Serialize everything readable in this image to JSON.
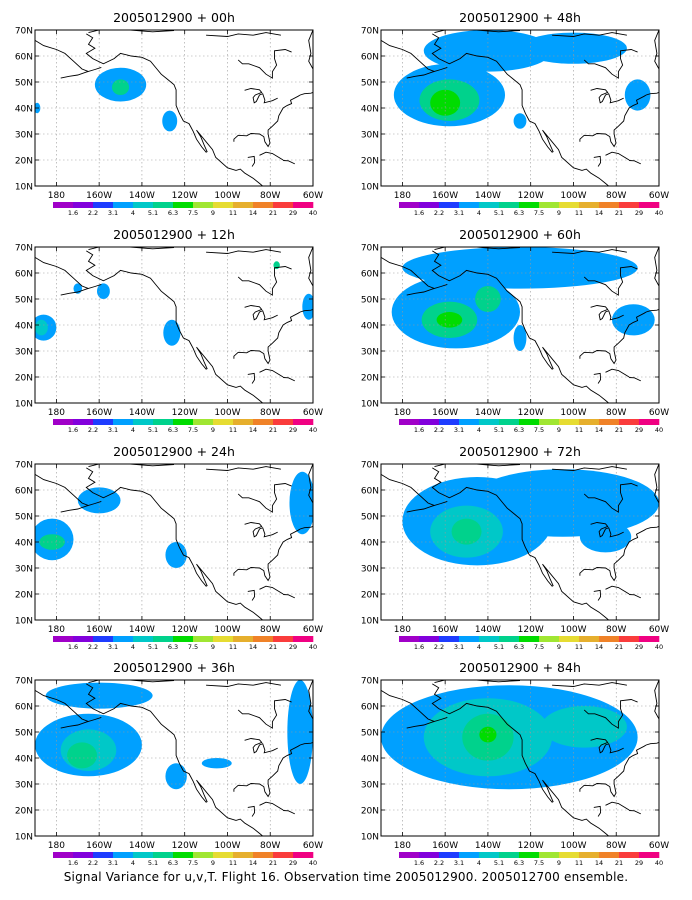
{
  "figure": {
    "caption": "Signal Variance for u,v,T. Flight 16. Observation time 2005012900. 2005012700 ensemble.",
    "panels": [
      {
        "title": "2005012900 + 00h",
        "blobs": [
          {
            "lon": 150,
            "lat": 49,
            "rlon": 12,
            "rlat": 6.5,
            "level": 3
          },
          {
            "lon": 150,
            "lat": 48,
            "rlon": 4,
            "rlat": 3,
            "level": 5
          },
          {
            "lon": 127,
            "lat": 35,
            "rlon": 3.5,
            "rlat": 4,
            "level": 3
          },
          {
            "lon": 189,
            "lat": 40,
            "rlon": 1.5,
            "rlat": 2,
            "level": 3
          }
        ]
      },
      {
        "title": "2005012900 + 48h",
        "blobs": [
          {
            "lon": 158,
            "lat": 45,
            "rlon": 26,
            "rlat": 12,
            "level": 3
          },
          {
            "lon": 140,
            "lat": 62,
            "rlon": 30,
            "rlat": 8,
            "level": 3
          },
          {
            "lon": 100,
            "lat": 63,
            "rlon": 25,
            "rlat": 6,
            "level": 3
          },
          {
            "lon": 158,
            "lat": 43,
            "rlon": 14,
            "rlat": 8,
            "level": 5
          },
          {
            "lon": 160,
            "lat": 42,
            "rlon": 7,
            "rlat": 5,
            "level": 6
          },
          {
            "lon": 125,
            "lat": 35,
            "rlon": 3,
            "rlat": 3,
            "level": 3
          },
          {
            "lon": 70,
            "lat": 45,
            "rlon": 6,
            "rlat": 6,
            "level": 3
          }
        ]
      },
      {
        "title": "2005012900 + 12h",
        "blobs": [
          {
            "lon": 186,
            "lat": 39,
            "rlon": 6,
            "rlat": 5,
            "level": 3
          },
          {
            "lon": 187,
            "lat": 39,
            "rlon": 3,
            "rlat": 3,
            "level": 4
          },
          {
            "lon": 158,
            "lat": 53,
            "rlon": 3,
            "rlat": 3,
            "level": 3
          },
          {
            "lon": 170,
            "lat": 54,
            "rlon": 2,
            "rlat": 2,
            "level": 3
          },
          {
            "lon": 126,
            "lat": 37,
            "rlon": 4,
            "rlat": 5,
            "level": 3
          },
          {
            "lon": 62,
            "lat": 47,
            "rlon": 3,
            "rlat": 5,
            "level": 3
          },
          {
            "lon": 77,
            "lat": 63,
            "rlon": 1.5,
            "rlat": 1.5,
            "level": 5
          }
        ]
      },
      {
        "title": "2005012900 + 60h",
        "blobs": [
          {
            "lon": 155,
            "lat": 45,
            "rlon": 30,
            "rlat": 14,
            "level": 3
          },
          {
            "lon": 125,
            "lat": 62,
            "rlon": 55,
            "rlat": 8,
            "level": 3
          },
          {
            "lon": 158,
            "lat": 42,
            "rlon": 13,
            "rlat": 7,
            "level": 5
          },
          {
            "lon": 140,
            "lat": 50,
            "rlon": 6,
            "rlat": 5,
            "level": 5
          },
          {
            "lon": 158,
            "lat": 42,
            "rlon": 6,
            "rlat": 3,
            "level": 6
          },
          {
            "lon": 125,
            "lat": 35,
            "rlon": 3,
            "rlat": 5,
            "level": 3
          },
          {
            "lon": 72,
            "lat": 42,
            "rlon": 10,
            "rlat": 6,
            "level": 3
          }
        ]
      },
      {
        "title": "2005012900 + 24h",
        "blobs": [
          {
            "lon": 182,
            "lat": 41,
            "rlon": 10,
            "rlat": 8,
            "level": 3
          },
          {
            "lon": 182,
            "lat": 40,
            "rlon": 6,
            "rlat": 3,
            "level": 5
          },
          {
            "lon": 160,
            "lat": 56,
            "rlon": 10,
            "rlat": 5,
            "level": 3
          },
          {
            "lon": 124,
            "lat": 35,
            "rlon": 5,
            "rlat": 5,
            "level": 3
          },
          {
            "lon": 65,
            "lat": 55,
            "rlon": 6,
            "rlat": 12,
            "level": 3
          }
        ]
      },
      {
        "title": "2005012900 + 72h",
        "blobs": [
          {
            "lon": 145,
            "lat": 48,
            "rlon": 35,
            "rlat": 17,
            "level": 3
          },
          {
            "lon": 105,
            "lat": 55,
            "rlon": 45,
            "rlat": 13,
            "level": 3
          },
          {
            "lon": 150,
            "lat": 44,
            "rlon": 17,
            "rlat": 10,
            "level": 4
          },
          {
            "lon": 150,
            "lat": 44,
            "rlon": 7,
            "rlat": 5,
            "level": 5
          },
          {
            "lon": 85,
            "lat": 42,
            "rlon": 12,
            "rlat": 6,
            "level": 3
          }
        ]
      },
      {
        "title": "2005012900 + 36h",
        "blobs": [
          {
            "lon": 165,
            "lat": 45,
            "rlon": 25,
            "rlat": 12,
            "level": 3
          },
          {
            "lon": 165,
            "lat": 43,
            "rlon": 13,
            "rlat": 8,
            "level": 4
          },
          {
            "lon": 168,
            "lat": 41,
            "rlon": 7,
            "rlat": 5,
            "level": 5
          },
          {
            "lon": 160,
            "lat": 64,
            "rlon": 25,
            "rlat": 5,
            "level": 3
          },
          {
            "lon": 124,
            "lat": 33,
            "rlon": 5,
            "rlat": 5,
            "level": 3
          },
          {
            "lon": 105,
            "lat": 38,
            "rlon": 7,
            "rlat": 2,
            "level": 3
          },
          {
            "lon": 66,
            "lat": 50,
            "rlon": 6,
            "rlat": 20,
            "level": 3
          }
        ]
      },
      {
        "title": "2005012900 + 84h",
        "blobs": [
          {
            "lon": 130,
            "lat": 48,
            "rlon": 60,
            "rlat": 20,
            "level": 3
          },
          {
            "lon": 140,
            "lat": 48,
            "rlon": 30,
            "rlat": 15,
            "level": 4
          },
          {
            "lon": 140,
            "lat": 48,
            "rlon": 12,
            "rlat": 9,
            "level": 5
          },
          {
            "lon": 140,
            "lat": 49,
            "rlon": 4,
            "rlat": 3,
            "level": 6
          },
          {
            "lon": 95,
            "lat": 52,
            "rlon": 20,
            "rlat": 8,
            "level": 4
          }
        ]
      }
    ],
    "lon_ticks": [
      "180",
      "160W",
      "140W",
      "120W",
      "100W",
      "80W",
      "60W"
    ],
    "lat_ticks": [
      "10N",
      "20N",
      "30N",
      "40N",
      "50N",
      "60N",
      "70N"
    ],
    "colorbar": {
      "labels": [
        "1.6",
        "2.2",
        "3.1",
        "4",
        "5.1",
        "6.3",
        "7.5",
        "9",
        "11",
        "14",
        "21",
        "29",
        "40"
      ],
      "colors": [
        "#a000c8",
        "#8200dc",
        "#1e3cff",
        "#00a0ff",
        "#00c8c8",
        "#00d28c",
        "#00dc00",
        "#a0e632",
        "#e6dc32",
        "#e6af2d",
        "#f08228",
        "#fa3c3c",
        "#f00082"
      ]
    }
  }
}
